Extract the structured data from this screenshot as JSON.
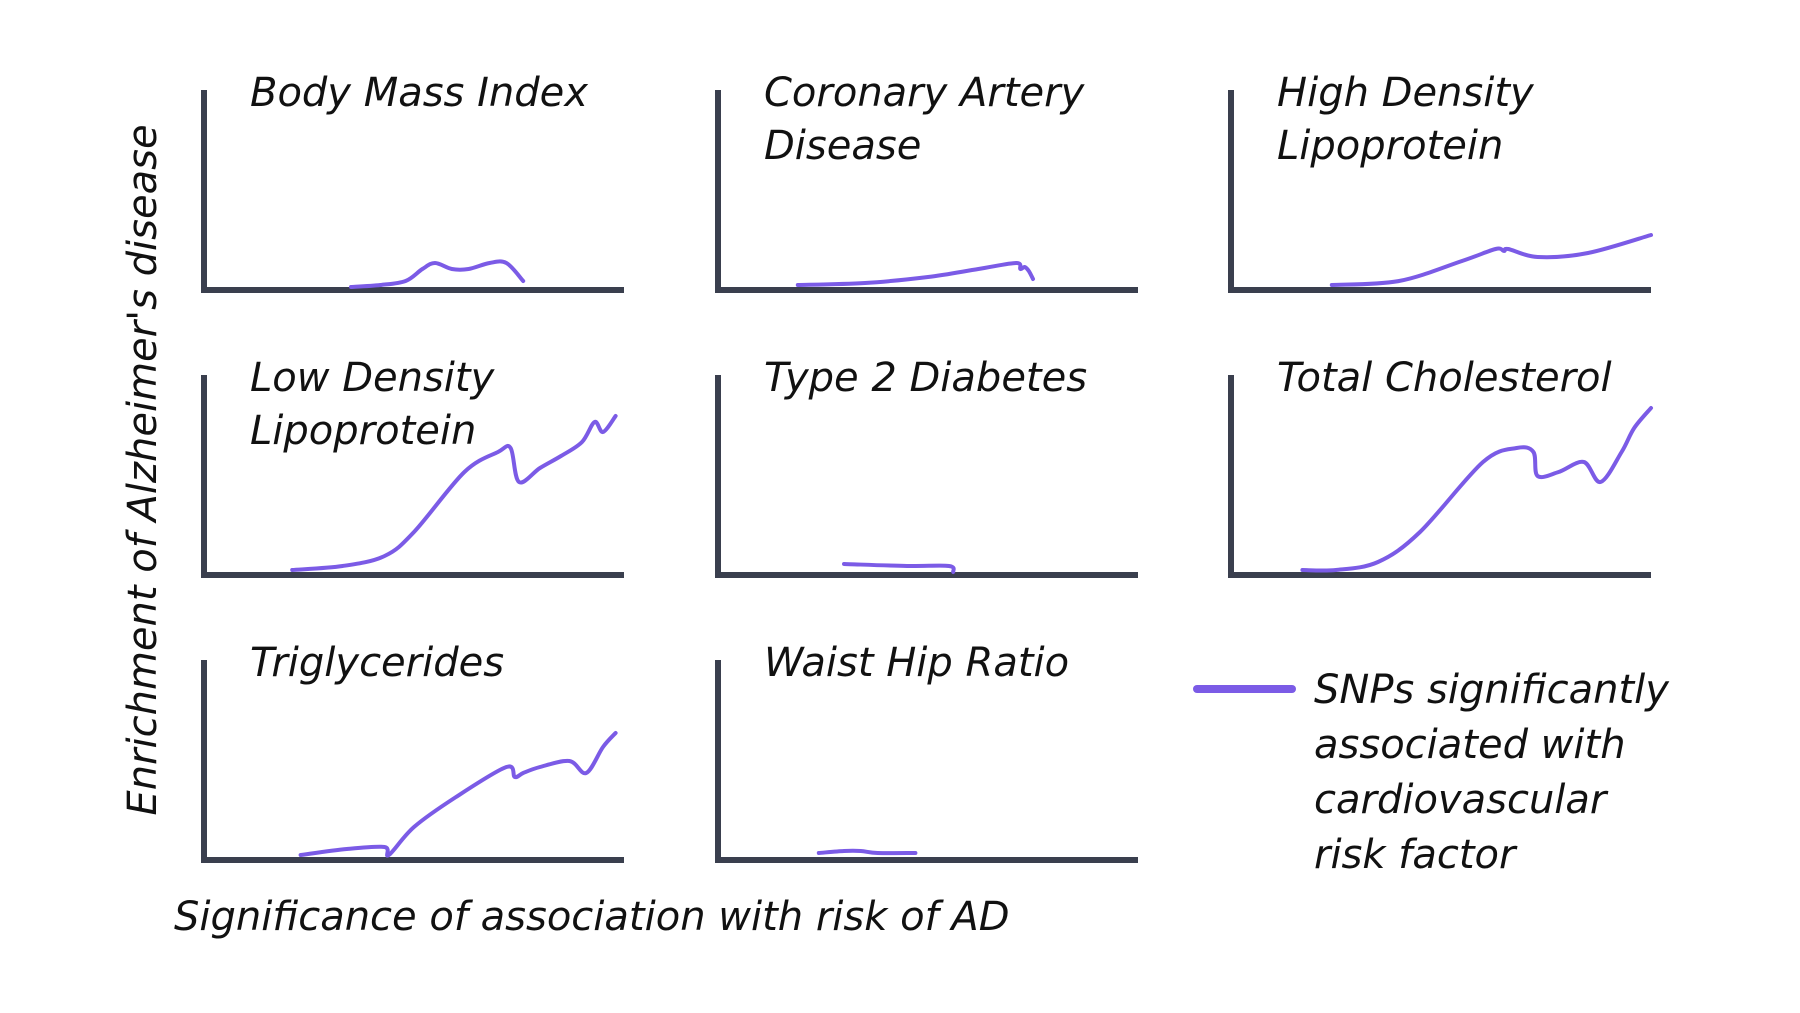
{
  "colors": {
    "axis": "#3a3f4e",
    "series": "#7b5be6",
    "text": "#111111"
  },
  "figure": {
    "ylabel": "Enrichment of Alzheimer's disease",
    "xlabel": "Significance of association with risk of AD",
    "legend": {
      "placement": "bottom-right",
      "lines": [
        "SNPs significantly",
        "associated with",
        "cardiovascular",
        "risk factor"
      ]
    }
  },
  "chart_data": [
    {
      "type": "line",
      "title_lines": [
        "Body Mass Index"
      ],
      "xlim": [
        0,
        100
      ],
      "ylim": [
        0,
        100
      ],
      "series": [
        {
          "name": "SNPs significantly associated with cardiovascular risk factor",
          "x": [
            35,
            42,
            48,
            52,
            55,
            59,
            63,
            68,
            72,
            76
          ],
          "y": [
            0,
            1,
            3,
            9,
            12,
            9,
            9,
            12,
            12,
            3
          ]
        }
      ]
    },
    {
      "type": "line",
      "title_lines": [
        "Coronary Artery",
        "Disease"
      ],
      "xlim": [
        0,
        100
      ],
      "ylim": [
        0,
        100
      ],
      "series": [
        {
          "name": "SNPs significantly associated with cardiovascular risk factor",
          "x": [
            19,
            35,
            50,
            62,
            71,
            72,
            73,
            74,
            75
          ],
          "y": [
            1,
            2,
            5,
            9,
            12,
            9,
            10,
            8,
            4
          ]
        }
      ]
    },
    {
      "type": "line",
      "title_lines": [
        "High Density",
        "Lipoprotein"
      ],
      "xlim": [
        0,
        100
      ],
      "ylim": [
        0,
        100
      ],
      "series": [
        {
          "name": "SNPs significantly associated with cardiovascular risk factor",
          "x": [
            24,
            40,
            55,
            63,
            65,
            66,
            73,
            85,
            100
          ],
          "y": [
            1,
            3,
            13,
            19,
            18,
            19,
            15,
            17,
            26
          ]
        }
      ]
    },
    {
      "type": "line",
      "title_lines": [
        "Low Density",
        "Lipoprotein"
      ],
      "xlim": [
        0,
        100
      ],
      "ylim": [
        0,
        100
      ],
      "series": [
        {
          "name": "SNPs significantly associated with cardiovascular risk factor",
          "x": [
            21,
            33,
            43,
            50,
            62,
            70,
            73,
            75,
            80,
            85,
            90,
            93,
            95,
            98
          ],
          "y": [
            1,
            3,
            8,
            20,
            50,
            60,
            62,
            45,
            52,
            58,
            65,
            75,
            70,
            78
          ]
        }
      ]
    },
    {
      "type": "line",
      "title_lines": [
        "Type 2 Diabetes"
      ],
      "xlim": [
        0,
        100
      ],
      "ylim": [
        0,
        100
      ],
      "series": [
        {
          "name": "SNPs significantly associated with cardiovascular risk factor",
          "x": [
            30,
            45,
            55,
            56
          ],
          "y": [
            4,
            3,
            3,
            0
          ]
        }
      ]
    },
    {
      "type": "line",
      "title_lines": [
        "Total Cholesterol"
      ],
      "xlim": [
        0,
        100
      ],
      "ylim": [
        0,
        100
      ],
      "series": [
        {
          "name": "SNPs significantly associated with cardiovascular risk factor",
          "x": [
            17,
            25,
            35,
            45,
            60,
            68,
            72,
            73,
            78,
            84,
            88,
            93,
            96,
            100
          ],
          "y": [
            1,
            1,
            5,
            20,
            55,
            62,
            60,
            48,
            50,
            55,
            45,
            60,
            72,
            82
          ]
        }
      ]
    },
    {
      "type": "line",
      "title_lines": [
        "Triglycerides"
      ],
      "xlim": [
        0,
        100
      ],
      "ylim": [
        0,
        100
      ],
      "series": [
        {
          "name": "SNPs significantly associated with cardiovascular risk factor",
          "x": [
            23,
            34,
            43,
            44,
            50,
            60,
            72,
            74,
            76,
            80,
            87,
            91,
            95,
            98
          ],
          "y": [
            1,
            4,
            5,
            1,
            15,
            30,
            45,
            40,
            42,
            45,
            48,
            42,
            55,
            62
          ]
        }
      ]
    },
    {
      "type": "line",
      "title_lines": [
        "Waist Hip Ratio"
      ],
      "xlim": [
        0,
        100
      ],
      "ylim": [
        0,
        100
      ],
      "series": [
        {
          "name": "SNPs significantly associated with cardiovascular risk factor",
          "x": [
            24,
            30,
            34,
            38,
            47
          ],
          "y": [
            2,
            3,
            3,
            2,
            2
          ]
        }
      ]
    }
  ]
}
